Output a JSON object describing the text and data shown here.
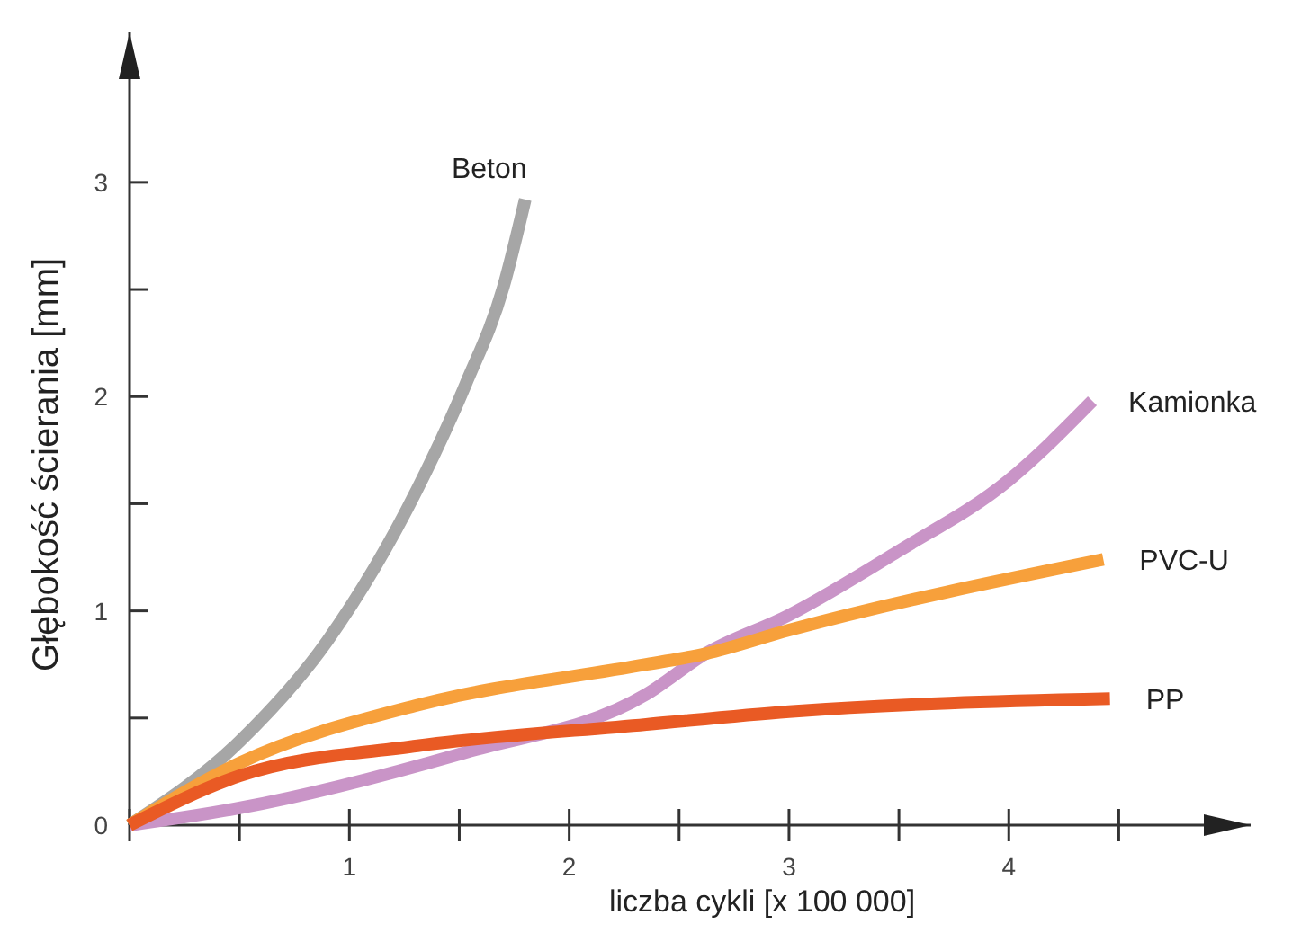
{
  "chart_data": {
    "type": "line",
    "xlabel": "liczba cykli [x 100 000]",
    "ylabel": "Głębokość ścierania [mm]",
    "xlim": [
      0,
      5.1
    ],
    "ylim": [
      0,
      3.7
    ],
    "xticks": [
      {
        "value": 0,
        "label": null
      },
      {
        "value": 0.5,
        "label": null
      },
      1,
      {
        "value": 1.5,
        "label": null
      },
      2,
      {
        "value": 2.5,
        "label": null
      },
      3,
      {
        "value": 3.5,
        "label": null
      },
      4,
      {
        "value": 4.5,
        "label": null
      }
    ],
    "yticks": [
      0,
      {
        "value": 0.5,
        "label": null
      },
      1,
      {
        "value": 1.5,
        "label": null
      },
      2,
      {
        "value": 2.5,
        "label": null
      },
      3
    ],
    "grid": false,
    "marker": "none",
    "line_style": "solid",
    "series": [
      {
        "name": "Beton",
        "color": "#a6a6a6",
        "x": [
          0,
          0.5,
          0.9,
          1.31,
          1.53,
          1.7,
          1.8
        ],
        "values": [
          0,
          0.39,
          0.86,
          1.57,
          2.06,
          2.51,
          2.92
        ]
      },
      {
        "name": "Kamionka",
        "color": "#c994c7",
        "x": [
          0,
          0.5,
          1.53,
          2.35,
          2.62,
          3,
          3.5,
          4,
          4.38
        ],
        "values": [
          0,
          0.08,
          0.34,
          0.61,
          0.8,
          0.98,
          1.28,
          1.61,
          1.98
        ]
      },
      {
        "name": "PVC-U",
        "color": "#f7a03b",
        "x": [
          0,
          0.5,
          1.31,
          2.35,
          2.62,
          3,
          4.43
        ],
        "values": [
          0,
          0.29,
          0.56,
          0.75,
          0.8,
          0.91,
          1.24
        ]
      },
      {
        "name": "PP",
        "color": "#e95a24",
        "x": [
          0,
          0.5,
          1.31,
          2.35,
          3,
          4.46
        ],
        "values": [
          0,
          0.23,
          0.37,
          0.47,
          0.53,
          0.59
        ]
      }
    ]
  }
}
